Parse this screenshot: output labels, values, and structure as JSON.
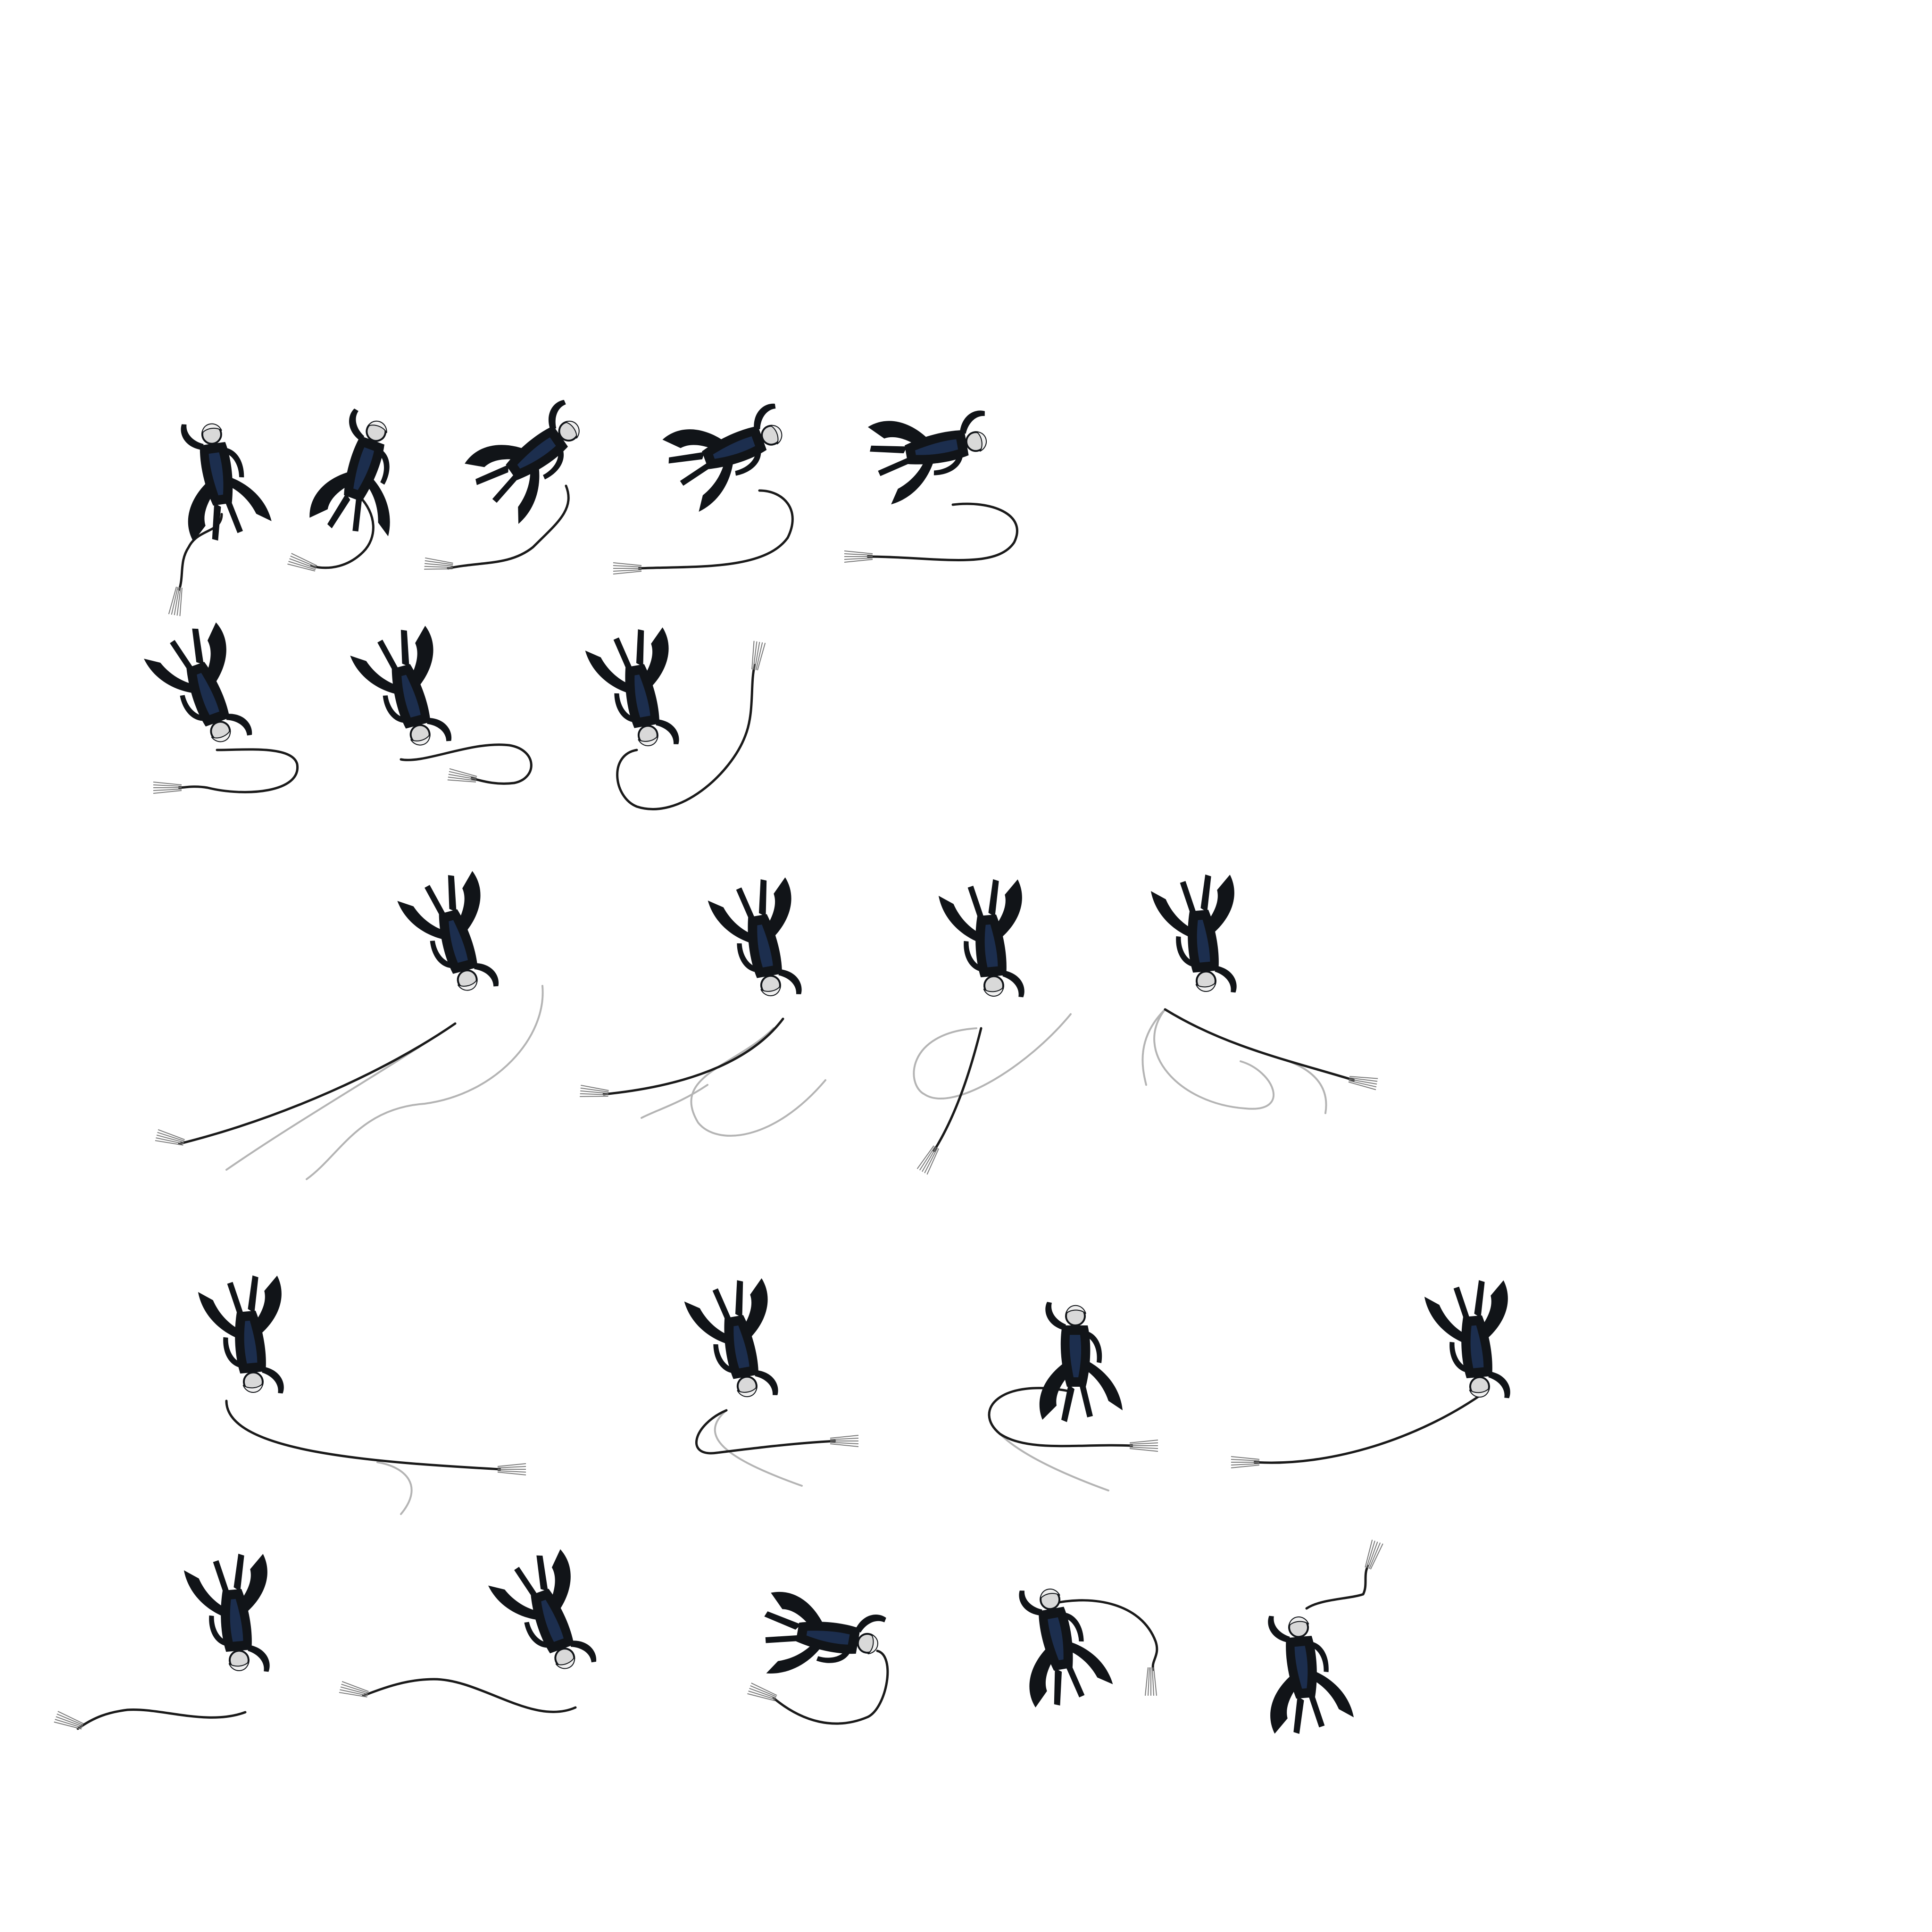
{
  "sprite_sheet": {
    "background": "#ffffff",
    "palette": {
      "body": "#111418",
      "body_accent": "#1e3358",
      "whip": "#1a1a1a",
      "whip_ghost": "#b4b4b4",
      "tip": "#7a7a7a",
      "skin": "#d9d9d9"
    },
    "rows": [
      {
        "id": "row-1",
        "frame_count": 5
      },
      {
        "id": "row-2",
        "frame_count": 3
      },
      {
        "id": "row-3",
        "frame_count": 4
      },
      {
        "id": "row-4",
        "frame_count": 4
      },
      {
        "id": "row-5",
        "frame_count": 5
      }
    ],
    "total_frames": 21
  }
}
